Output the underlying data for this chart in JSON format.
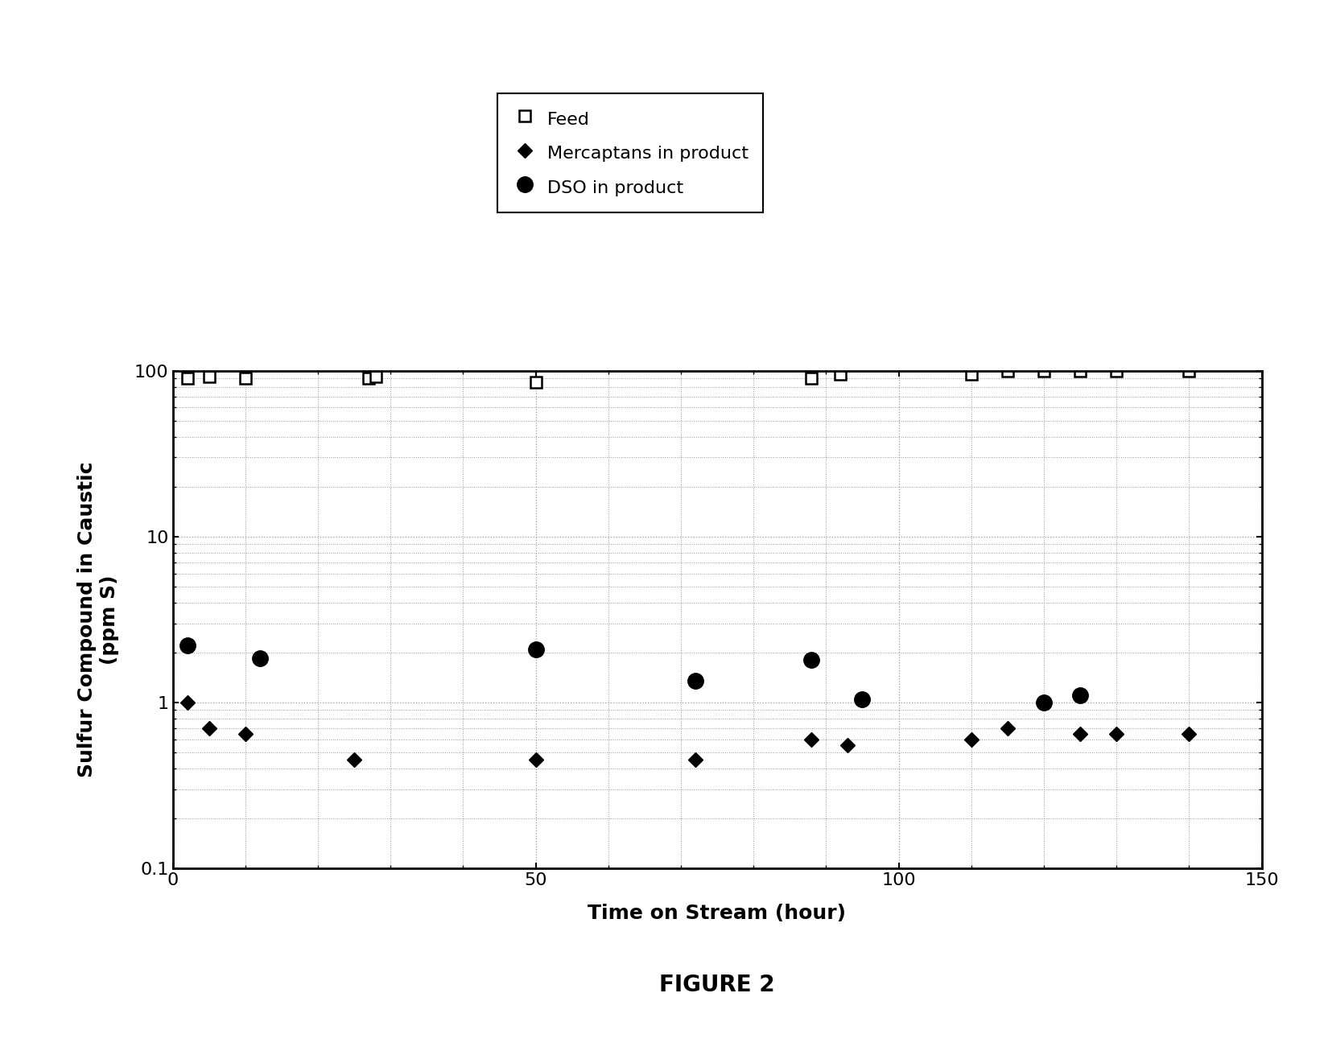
{
  "feed_x": [
    2,
    5,
    10,
    27,
    28,
    50,
    88,
    92,
    110,
    115,
    120,
    125,
    130,
    140
  ],
  "feed_y": [
    90,
    92,
    90,
    90,
    92,
    85,
    90,
    95,
    95,
    100,
    100,
    100,
    100,
    100
  ],
  "mercaptans_x": [
    2,
    5,
    10,
    25,
    50,
    72,
    88,
    93,
    110,
    115,
    125,
    130,
    140
  ],
  "mercaptans_y": [
    1.0,
    0.7,
    0.65,
    0.45,
    0.45,
    0.45,
    0.6,
    0.55,
    0.6,
    0.7,
    0.65,
    0.65,
    0.65
  ],
  "dso_x": [
    2,
    12,
    50,
    72,
    88,
    95,
    120,
    125
  ],
  "dso_y": [
    2.2,
    1.85,
    2.1,
    1.35,
    1.8,
    1.05,
    1.0,
    1.1
  ],
  "xlabel": "Time on Stream (hour)",
  "ylabel": "Sulfur Compound in Caustic\n(ppm S)",
  "figure_label": "FIGURE 2",
  "xlim": [
    0,
    150
  ],
  "ylim_log": [
    0.1,
    100
  ],
  "xticks": [
    0,
    50,
    100,
    150
  ],
  "yticks_log": [
    0.1,
    1,
    10,
    100
  ],
  "legend_feed": "Feed",
  "legend_mercaptans": "Mercaptans in product",
  "legend_dso": "DSO in product",
  "background_color": "#ffffff",
  "grid_color": "#999999"
}
